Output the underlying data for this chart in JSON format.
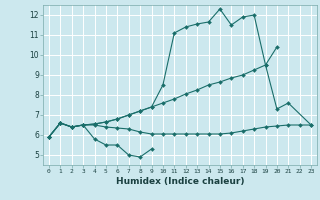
{
  "xlabel": "Humidex (Indice chaleur)",
  "bg_color": "#cce8ee",
  "grid_color": "#ffffff",
  "line_color": "#1a6e6a",
  "xlim": [
    -0.5,
    23.5
  ],
  "ylim": [
    4.5,
    12.5
  ],
  "xticks": [
    0,
    1,
    2,
    3,
    4,
    5,
    6,
    7,
    8,
    9,
    10,
    11,
    12,
    13,
    14,
    15,
    16,
    17,
    18,
    19,
    20,
    21,
    22,
    23
  ],
  "yticks": [
    5,
    6,
    7,
    8,
    9,
    10,
    11,
    12
  ],
  "series": [
    [
      5.9,
      6.6,
      6.4,
      6.5,
      5.8,
      5.5,
      5.5,
      5.0,
      4.9,
      5.3,
      null,
      null,
      null,
      null,
      null,
      null,
      null,
      null,
      null,
      null,
      null,
      null,
      null,
      null
    ],
    [
      5.9,
      6.6,
      6.4,
      6.5,
      6.5,
      6.4,
      6.35,
      6.3,
      6.15,
      6.05,
      6.05,
      6.05,
      6.05,
      6.05,
      6.05,
      6.05,
      6.1,
      6.2,
      6.3,
      6.4,
      6.45,
      6.5,
      6.5,
      6.5
    ],
    [
      5.9,
      6.6,
      6.4,
      6.5,
      6.55,
      6.65,
      6.8,
      7.0,
      7.2,
      7.4,
      7.6,
      7.8,
      8.05,
      8.25,
      8.5,
      8.65,
      8.85,
      9.0,
      9.25,
      9.5,
      10.4,
      null,
      null,
      null
    ],
    [
      5.9,
      6.6,
      6.4,
      6.5,
      6.55,
      6.65,
      6.8,
      7.0,
      7.2,
      7.4,
      8.5,
      11.1,
      11.4,
      11.55,
      11.65,
      12.3,
      11.5,
      11.9,
      12.0,
      9.5,
      7.3,
      7.6,
      null,
      6.5
    ]
  ]
}
